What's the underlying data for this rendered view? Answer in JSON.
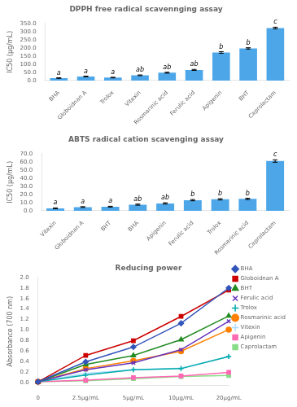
{
  "chart_data": [
    {
      "type": "bar",
      "title": "DPPH free radical scavennging assay",
      "ylabel": "IC50 (μg/mL)",
      "categories": [
        "BHA",
        "Globoidnan A",
        "Trolox",
        "Vitexin",
        "Rosmarinic acid",
        "Ferulic acid",
        "Apigenin",
        "BHT",
        "Caprolactam"
      ],
      "values": [
        15,
        25,
        18,
        32,
        48,
        65,
        172,
        197,
        322
      ],
      "errors": [
        2,
        2,
        2,
        2,
        3,
        3,
        5,
        4,
        5
      ],
      "annotations": [
        "a",
        "a",
        "a",
        "ab",
        "ab",
        "ab",
        "b",
        "b",
        "c"
      ],
      "color": "#4da6e8",
      "ylim": [
        0,
        350
      ],
      "yticks": [
        {
          "value": 0,
          "label": "0.0"
        },
        {
          "value": 50,
          "label": "50.0"
        },
        {
          "value": 100,
          "label": "100.0"
        },
        {
          "value": 150,
          "label": "150.0"
        },
        {
          "value": 200,
          "label": "200.0"
        },
        {
          "value": 250,
          "label": "250.0"
        },
        {
          "value": 300,
          "label": "300.0"
        },
        {
          "value": 350,
          "label": "350.0"
        }
      ],
      "grid": false
    },
    {
      "type": "bar",
      "title": "ABTS radical cation scavenging assay",
      "ylabel": "IC50 (μg/mL)",
      "categories": [
        "Vitexin",
        "Globoidnan A",
        "BHT",
        "BHA",
        "Apigenin",
        "Ferulic acid",
        "Trolox",
        "Rosmarinic acid",
        "Caprolactam"
      ],
      "values": [
        3,
        4.5,
        5,
        7.5,
        9,
        13,
        14,
        14.5,
        61
      ],
      "errors": [
        0.5,
        0.5,
        0.5,
        0.7,
        0.8,
        0.8,
        0.8,
        0.8,
        1.5
      ],
      "annotations": [
        "a",
        "a",
        "a",
        "ab",
        "ab",
        "b",
        "b",
        "b",
        "c"
      ],
      "color": "#4da6e8",
      "ylim": [
        0,
        70
      ],
      "yticks": [
        {
          "value": 0,
          "label": "0.0"
        },
        {
          "value": 10,
          "label": "10.0"
        },
        {
          "value": 20,
          "label": "20.0"
        },
        {
          "value": 30,
          "label": "30.0"
        },
        {
          "value": 40,
          "label": "40.0"
        },
        {
          "value": 50,
          "label": "50.0"
        },
        {
          "value": 60,
          "label": "60.0"
        },
        {
          "value": 70,
          "label": "70.0"
        }
      ],
      "grid": false
    },
    {
      "type": "line",
      "title": "Reducing power",
      "ylabel": "Absorbance (700 nm)",
      "categories": [
        "0",
        "2.5μg/mL",
        "5μg/mL",
        "10μg/mL",
        "20μg/mL"
      ],
      "series": [
        {
          "name": "BHA",
          "values": [
            0.02,
            0.4,
            0.68,
            1.13,
            1.8
          ],
          "color": "#3355bb",
          "marker": "diamond"
        },
        {
          "name": "Globoidnan A",
          "values": [
            0.02,
            0.52,
            0.8,
            1.26,
            1.76
          ],
          "color": "#cc0000",
          "marker": "square"
        },
        {
          "name": "BHT",
          "values": [
            0.02,
            0.35,
            0.52,
            0.82,
            1.27
          ],
          "color": "#228b22",
          "marker": "triangle"
        },
        {
          "name": "Ferulic acid",
          "values": [
            0.02,
            0.25,
            0.38,
            0.63,
            1.17
          ],
          "color": "#6633bb",
          "marker": "x"
        },
        {
          "name": "Trolox",
          "values": [
            0.02,
            0.15,
            0.25,
            0.27,
            0.5
          ],
          "color": "#00aaaa",
          "marker": "plus"
        },
        {
          "name": "Rosmarinic acid",
          "values": [
            0.02,
            0.27,
            0.42,
            0.6,
            1.01
          ],
          "color": "#ff7f00",
          "marker": "circle"
        },
        {
          "name": "Vitexin",
          "values": [
            0.02,
            0.18,
            0.25,
            0.28,
            0.5
          ],
          "color": "#aaddff",
          "marker": "plus"
        },
        {
          "name": "Apigenin",
          "values": [
            0.02,
            0.05,
            0.1,
            0.13,
            0.2
          ],
          "color": "#ff69b4",
          "marker": "square"
        },
        {
          "name": "Caprolactam",
          "values": [
            0.02,
            0.04,
            0.08,
            0.12,
            0.14
          ],
          "color": "#88dd88",
          "marker": "square"
        }
      ],
      "ylim": [
        -0.05,
        2.0
      ],
      "yticks": [
        {
          "value": 0,
          "label": "0.0"
        },
        0.2,
        0.4,
        0.6,
        0.8,
        {
          "value": 1,
          "label": "1.0"
        },
        1.2,
        1.4,
        1.6,
        1.8,
        {
          "value": 2,
          "label": "2.0"
        }
      ],
      "grid": false,
      "legend": "right"
    }
  ]
}
